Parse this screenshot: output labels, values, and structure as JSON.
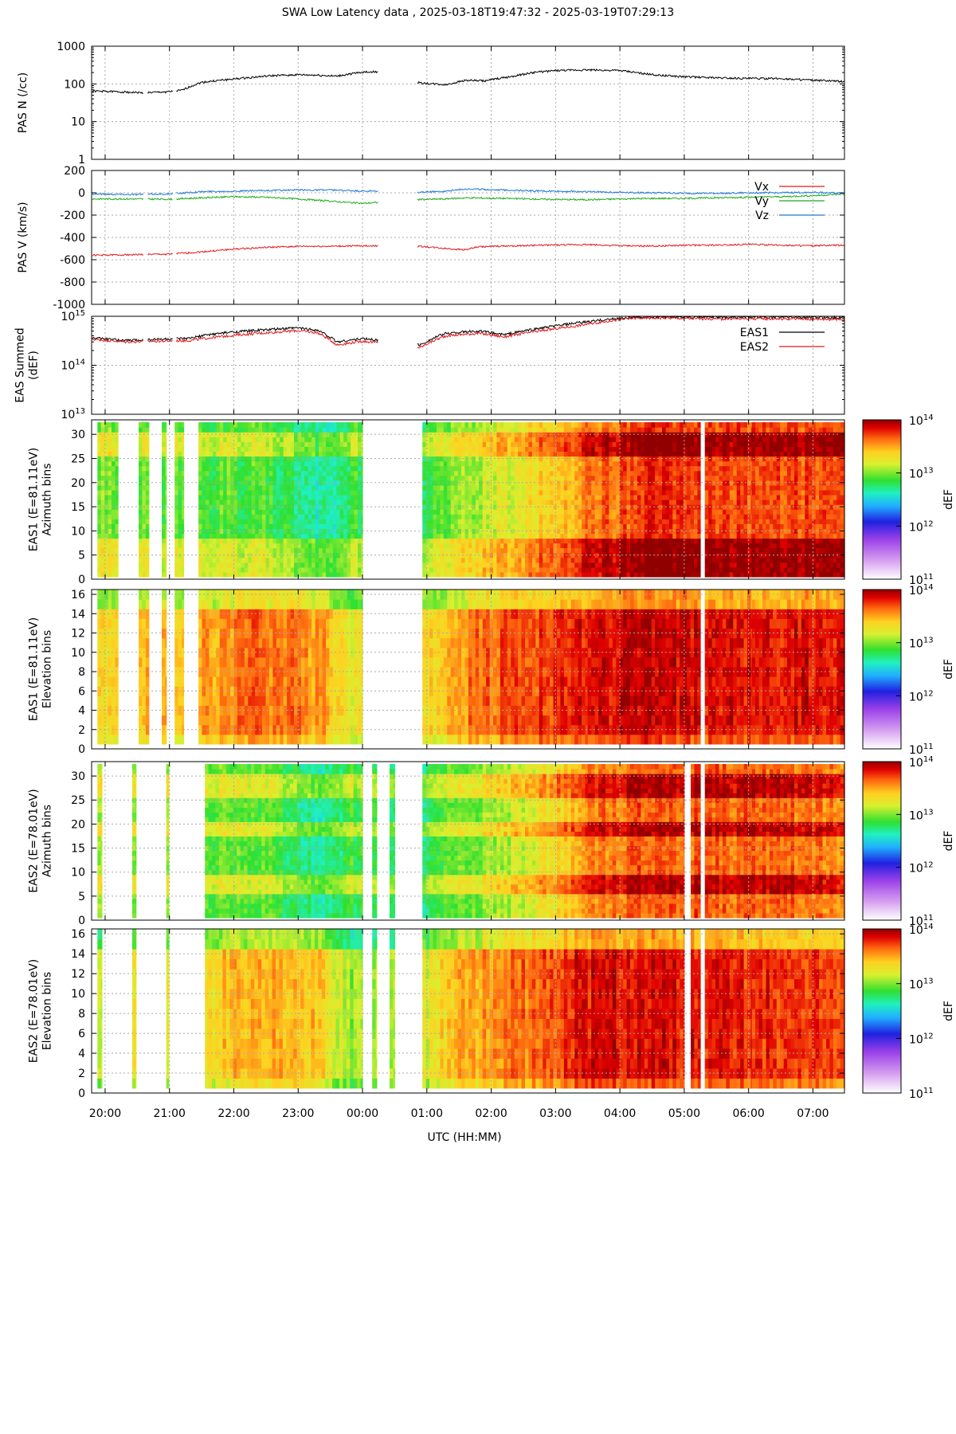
{
  "title": "SWA Low Latency data ,  2025-03-18T19:47:32 - 2025-03-19T07:29:13",
  "xaxis": {
    "label": "UTC (HH:MM)",
    "start_hour": 19.79,
    "end_hour": 31.49,
    "ticks": [
      "20:00",
      "21:00",
      "22:00",
      "23:00",
      "00:00",
      "01:00",
      "02:00",
      "03:00",
      "04:00",
      "05:00",
      "06:00",
      "07:00"
    ]
  },
  "chart_data": [
    {
      "type": "line",
      "panel": "pas_n",
      "ylabel": "PAS N (/cc)",
      "yscale": "log",
      "ylim": [
        1,
        1000
      ],
      "yticks": [
        "1000",
        "100",
        "10",
        "1"
      ],
      "series": [
        {
          "name": "N",
          "color": "#000000",
          "x_hours": [
            19.8,
            20.2,
            20.6,
            21.0,
            21.2,
            21.5,
            21.8,
            22.2,
            22.6,
            23.0,
            23.3,
            23.6,
            24.0,
            24.2,
            24.9,
            25.3,
            25.6,
            25.9,
            26.3,
            26.7,
            27.0,
            27.5,
            28.0,
            28.5,
            29.0,
            29.5,
            30.0,
            30.5,
            31.0,
            31.49
          ],
          "values": [
            65,
            62,
            58,
            62,
            68,
            110,
            125,
            145,
            165,
            175,
            170,
            160,
            205,
            210,
            105,
            95,
            125,
            120,
            155,
            205,
            225,
            235,
            225,
            175,
            155,
            145,
            140,
            138,
            125,
            115
          ]
        }
      ],
      "gaps": [
        [
          24.25,
          24.85
        ]
      ]
    },
    {
      "type": "line",
      "panel": "pas_v",
      "ylabel": "PAS V (km/s)",
      "ylim": [
        -1000,
        200
      ],
      "yticks": [
        "200",
        "0",
        "-200",
        "-400",
        "-600",
        "-800",
        "-1000"
      ],
      "series": [
        {
          "name": "Vx",
          "color": "#e41a1c",
          "x_hours": [
            19.8,
            20.4,
            21.0,
            21.5,
            22.0,
            22.5,
            23.0,
            23.5,
            24.0,
            24.9,
            25.3,
            25.6,
            25.8,
            26.2,
            26.8,
            27.5,
            28.0,
            28.5,
            29.0,
            29.5,
            30.0,
            30.5,
            31.0,
            31.49
          ],
          "values": [
            -560,
            -555,
            -550,
            -530,
            -505,
            -490,
            -480,
            -480,
            -475,
            -480,
            -500,
            -510,
            -485,
            -478,
            -470,
            -465,
            -475,
            -478,
            -470,
            -470,
            -462,
            -470,
            -475,
            -470
          ]
        },
        {
          "name": "Vy",
          "color": "#1aab1a",
          "x_hours": [
            19.8,
            20.4,
            21.0,
            21.5,
            22.0,
            22.5,
            23.0,
            23.5,
            24.0,
            24.9,
            25.3,
            25.6,
            26.2,
            26.8,
            27.5,
            28.0,
            28.5,
            29.0,
            29.5,
            30.0,
            30.5,
            31.0,
            31.49
          ],
          "values": [
            -55,
            -55,
            -58,
            -45,
            -35,
            -40,
            -55,
            -75,
            -95,
            -60,
            -55,
            -45,
            -50,
            -58,
            -62,
            -55,
            -50,
            -50,
            -45,
            -40,
            -35,
            -25,
            -10
          ]
        },
        {
          "name": "Vz",
          "color": "#1f78d4",
          "x_hours": [
            19.8,
            20.4,
            21.0,
            21.5,
            22.0,
            22.5,
            23.0,
            23.5,
            24.0,
            24.9,
            25.3,
            25.6,
            26.2,
            26.8,
            27.5,
            28.0,
            28.5,
            29.0,
            29.5,
            30.0,
            30.5,
            31.0,
            31.49
          ],
          "values": [
            -10,
            -15,
            -10,
            10,
            15,
            20,
            25,
            25,
            15,
            5,
            15,
            35,
            25,
            15,
            10,
            5,
            0,
            -5,
            -5,
            0,
            0,
            5,
            -5
          ]
        }
      ],
      "legend": "top-right",
      "gaps": [
        [
          24.25,
          24.85
        ]
      ]
    },
    {
      "type": "line",
      "panel": "eas_summed",
      "ylabel": "EAS Summed (dEF)",
      "yscale": "log",
      "ylim": [
        10000000000000.0,
        1000000000000000.0
      ],
      "yticks": [
        "10^15",
        "10^14",
        "10^13"
      ],
      "series": [
        {
          "name": "EAS1",
          "color": "#000000",
          "x_hours": [
            19.8,
            20.3,
            20.8,
            21.3,
            21.6,
            22.0,
            22.5,
            23.0,
            23.3,
            23.6,
            24.0,
            24.9,
            25.3,
            25.8,
            26.2,
            26.8,
            27.3,
            27.8,
            28.2,
            28.6,
            29.0,
            29.5,
            30.0,
            30.5,
            31.0,
            31.49
          ],
          "values": [
            360000000000000.0,
            320000000000000.0,
            340000000000000.0,
            350000000000000.0,
            420000000000000.0,
            480000000000000.0,
            530000000000000.0,
            580000000000000.0,
            520000000000000.0,
            300000000000000.0,
            350000000000000.0,
            260000000000000.0,
            450000000000000.0,
            500000000000000.0,
            420000000000000.0,
            580000000000000.0,
            720000000000000.0,
            860000000000000.0,
            950000000000000.0,
            960000000000000.0,
            980000000000000.0,
            960000000000000.0,
            970000000000000.0,
            960000000000000.0,
            950000000000000.0,
            940000000000000.0
          ]
        },
        {
          "name": "EAS2",
          "color": "#e41a1c",
          "x_hours": [
            19.8,
            20.3,
            20.8,
            21.3,
            21.6,
            22.0,
            22.5,
            23.0,
            23.3,
            23.6,
            24.0,
            24.9,
            25.3,
            25.8,
            26.2,
            26.8,
            27.3,
            27.8,
            28.2,
            28.6,
            29.0,
            29.5,
            30.0,
            30.5,
            31.0,
            31.49
          ],
          "values": [
            340000000000000.0,
            300000000000000.0,
            310000000000000.0,
            320000000000000.0,
            360000000000000.0,
            410000000000000.0,
            460000000000000.0,
            510000000000000.0,
            460000000000000.0,
            260000000000000.0,
            310000000000000.0,
            230000000000000.0,
            400000000000000.0,
            450000000000000.0,
            380000000000000.0,
            510000000000000.0,
            630000000000000.0,
            790000000000000.0,
            920000000000000.0,
            930000000000000.0,
            910000000000000.0,
            880000000000000.0,
            900000000000000.0,
            890000000000000.0,
            880000000000000.0,
            860000000000000.0
          ]
        }
      ],
      "legend": "top-right",
      "gaps": [
        [
          24.25,
          24.85
        ]
      ]
    },
    {
      "type": "heatmap",
      "panel": "eas1_az",
      "ylabel": [
        "EAS1 (E=81.11eV)",
        "Azimuth bins"
      ],
      "ylim": [
        0,
        33
      ],
      "yticks": [
        "0",
        "5",
        "10",
        "15",
        "20",
        "25",
        "30"
      ],
      "bins": 32,
      "colorbar": {
        "label": "dEF",
        "ticks": [
          "10^11",
          "10^12",
          "10^13",
          "10^14"
        ],
        "range_log10": [
          11,
          14
        ]
      },
      "data_segments_hours": [
        [
          19.88,
          20.2
        ],
        [
          20.52,
          20.68
        ],
        [
          20.88,
          20.95
        ],
        [
          21.08,
          21.22
        ],
        [
          21.45,
          24.0
        ],
        [
          24.93,
          27.5
        ],
        [
          27.5,
          29.25
        ],
        [
          29.32,
          30.05
        ],
        [
          30.05,
          31.49
        ]
      ],
      "level_log10_by_hour": [
        [
          19.8,
          13.0
        ],
        [
          21.5,
          12.9
        ],
        [
          22.5,
          12.9
        ],
        [
          23.3,
          12.6
        ],
        [
          23.8,
          12.85
        ],
        [
          24.9,
          12.8
        ],
        [
          25.5,
          13.05
        ],
        [
          26.2,
          13.2
        ],
        [
          27.0,
          13.4
        ],
        [
          27.5,
          13.6
        ],
        [
          28.5,
          13.75
        ],
        [
          29.5,
          13.7
        ],
        [
          31.49,
          13.7
        ]
      ],
      "enhanced_bins": [
        [
          1,
          8
        ],
        [
          26,
          30
        ]
      ]
    },
    {
      "type": "heatmap",
      "panel": "eas1_el",
      "ylabel": [
        "EAS1 (E=81.11eV)",
        "Elevation bins"
      ],
      "ylim": [
        0,
        16.5
      ],
      "yticks": [
        "0",
        "2",
        "4",
        "6",
        "8",
        "10",
        "12",
        "14",
        "16"
      ],
      "bins": 16,
      "colorbar": {
        "label": "dEF",
        "ticks": [
          "10^11",
          "10^12",
          "10^13",
          "10^14"
        ],
        "range_log10": [
          11,
          14
        ]
      },
      "data_segments_hours": [
        [
          19.88,
          20.2
        ],
        [
          20.52,
          20.68
        ],
        [
          20.88,
          20.95
        ],
        [
          21.08,
          21.22
        ],
        [
          21.45,
          24.0
        ],
        [
          24.93,
          27.5
        ],
        [
          27.5,
          29.25
        ],
        [
          29.32,
          30.05
        ],
        [
          30.05,
          31.49
        ]
      ],
      "level_log10_by_hour": [
        [
          19.8,
          13.35
        ],
        [
          21.5,
          13.5
        ],
        [
          22.5,
          13.65
        ],
        [
          23.3,
          13.55
        ],
        [
          23.8,
          13.2
        ],
        [
          24.9,
          13.3
        ],
        [
          25.5,
          13.55
        ],
        [
          26.2,
          13.7
        ],
        [
          27.0,
          13.75
        ],
        [
          27.5,
          13.85
        ],
        [
          28.5,
          13.9
        ],
        [
          29.5,
          13.85
        ],
        [
          31.49,
          13.85
        ]
      ],
      "enhanced_bins": []
    },
    {
      "type": "heatmap",
      "panel": "eas2_az",
      "ylabel": [
        "EAS2 (E=78.01eV)",
        "Azimuth bins"
      ],
      "ylim": [
        0,
        33
      ],
      "yticks": [
        "0",
        "5",
        "10",
        "15",
        "20",
        "25",
        "30"
      ],
      "bins": 32,
      "colorbar": {
        "label": "dEF",
        "ticks": [
          "10^11",
          "10^12",
          "10^13",
          "10^14"
        ],
        "range_log10": [
          11,
          14
        ]
      },
      "data_segments_hours": [
        [
          19.88,
          19.95
        ],
        [
          20.42,
          20.48
        ],
        [
          20.95,
          20.99
        ],
        [
          21.55,
          24.0
        ],
        [
          24.15,
          24.22
        ],
        [
          24.42,
          24.5
        ],
        [
          24.93,
          27.5
        ],
        [
          27.5,
          29.0
        ],
        [
          29.1,
          29.25
        ],
        [
          29.32,
          30.05
        ],
        [
          30.05,
          31.49
        ]
      ],
      "level_log10_by_hour": [
        [
          19.8,
          13.0
        ],
        [
          21.5,
          12.95
        ],
        [
          22.5,
          12.9
        ],
        [
          23.3,
          12.65
        ],
        [
          23.8,
          12.85
        ],
        [
          24.9,
          12.75
        ],
        [
          25.5,
          12.95
        ],
        [
          26.2,
          13.1
        ],
        [
          27.0,
          13.3
        ],
        [
          27.5,
          13.55
        ],
        [
          28.5,
          13.7
        ],
        [
          29.5,
          13.65
        ],
        [
          31.49,
          13.6
        ]
      ],
      "enhanced_bins": [
        [
          6,
          9
        ],
        [
          18,
          20
        ],
        [
          26,
          30
        ]
      ]
    },
    {
      "type": "heatmap",
      "panel": "eas2_el",
      "ylabel": [
        "EAS2 (E=78.01eV)",
        "Elevation bins"
      ],
      "ylim": [
        0,
        16.5
      ],
      "yticks": [
        "0",
        "2",
        "4",
        "6",
        "8",
        "10",
        "12",
        "14",
        "16"
      ],
      "bins": 16,
      "colorbar": {
        "label": "dEF",
        "ticks": [
          "10^11",
          "10^12",
          "10^13",
          "10^14"
        ],
        "range_log10": [
          11,
          14
        ]
      },
      "data_segments_hours": [
        [
          19.88,
          19.95
        ],
        [
          20.42,
          20.48
        ],
        [
          20.95,
          20.99
        ],
        [
          21.55,
          24.0
        ],
        [
          24.15,
          24.22
        ],
        [
          24.42,
          24.5
        ],
        [
          24.93,
          27.5
        ],
        [
          27.5,
          29.0
        ],
        [
          29.1,
          29.25
        ],
        [
          29.32,
          30.05
        ],
        [
          30.05,
          31.49
        ]
      ],
      "level_log10_by_hour": [
        [
          19.8,
          13.2
        ],
        [
          21.5,
          13.35
        ],
        [
          22.5,
          13.5
        ],
        [
          23.3,
          13.4
        ],
        [
          23.8,
          13.05
        ],
        [
          24.9,
          13.2
        ],
        [
          25.5,
          13.45
        ],
        [
          26.2,
          13.6
        ],
        [
          27.0,
          13.7
        ],
        [
          27.5,
          13.85
        ],
        [
          28.5,
          13.85
        ],
        [
          29.5,
          13.8
        ],
        [
          31.49,
          13.75
        ]
      ],
      "enhanced_bins": []
    }
  ]
}
